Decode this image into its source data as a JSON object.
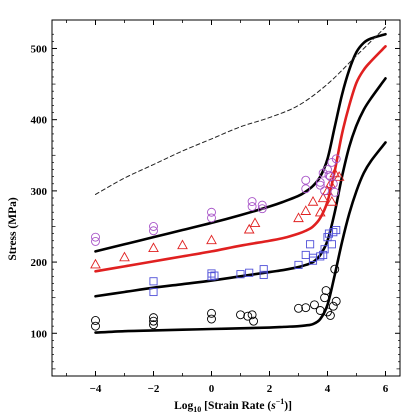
{
  "chart_data": {
    "type": "scatter",
    "title": "",
    "xlabel": "Log",
    "xlabel_sub": "10",
    "xlabel_main": " [Strain Rate (",
    "xlabel_unit_base": "s",
    "xlabel_unit_exp": "−1",
    "xlabel_end": ")]",
    "ylabel": "Stress (MPa)",
    "xlim": [
      -5.5,
      6.5
    ],
    "ylim": [
      40,
      540
    ],
    "xticks": [
      -4,
      -2,
      0,
      2,
      4,
      6
    ],
    "xtick_labels": [
      "−4",
      "−2",
      "0",
      "2",
      "4",
      "6"
    ],
    "yticks": [
      100,
      200,
      300,
      400,
      500
    ],
    "ytick_labels": [
      "100",
      "200",
      "300",
      "400",
      "500"
    ],
    "grid": false,
    "legend": "none",
    "series": [
      {
        "marker": "circle",
        "color": "#000000",
        "points": [
          [
            -4,
            118
          ],
          [
            -4,
            110
          ],
          [
            -2,
            122
          ],
          [
            -2,
            117
          ],
          [
            -2,
            112
          ],
          [
            0,
            128
          ],
          [
            0,
            120
          ],
          [
            1,
            126
          ],
          [
            1.25,
            124
          ],
          [
            1.4,
            126
          ],
          [
            1.45,
            117
          ],
          [
            3.0,
            135
          ],
          [
            3.25,
            136
          ],
          [
            3.55,
            140
          ],
          [
            3.75,
            132
          ],
          [
            3.9,
            150
          ],
          [
            3.95,
            160
          ],
          [
            4.0,
            130
          ],
          [
            4.1,
            125
          ],
          [
            4.2,
            138
          ],
          [
            4.3,
            145
          ],
          [
            4.25,
            190
          ]
        ]
      },
      {
        "marker": "square",
        "color": "#4f4fd8",
        "points": [
          [
            -2,
            173
          ],
          [
            -2,
            158
          ],
          [
            0,
            184
          ],
          [
            0,
            180
          ],
          [
            0.1,
            181
          ],
          [
            1.0,
            183
          ],
          [
            1.3,
            185
          ],
          [
            1.8,
            182
          ],
          [
            1.8,
            190
          ],
          [
            3.0,
            196
          ],
          [
            3.25,
            210
          ],
          [
            3.4,
            225
          ],
          [
            3.5,
            202
          ],
          [
            3.5,
            206
          ],
          [
            3.75,
            208
          ],
          [
            3.85,
            210
          ],
          [
            3.9,
            218
          ],
          [
            4.0,
            235
          ],
          [
            4.05,
            240
          ],
          [
            4.15,
            225
          ],
          [
            4.2,
            242
          ],
          [
            4.3,
            245
          ]
        ]
      },
      {
        "marker": "triangle",
        "color": "#e02020",
        "points": [
          [
            -4,
            197
          ],
          [
            -3,
            207
          ],
          [
            -2,
            220
          ],
          [
            -1,
            224
          ],
          [
            0,
            231
          ],
          [
            1.3,
            246
          ],
          [
            1.5,
            255
          ],
          [
            3.0,
            262
          ],
          [
            3.25,
            272
          ],
          [
            3.5,
            285
          ],
          [
            3.75,
            270
          ],
          [
            3.85,
            290
          ],
          [
            4.0,
            300
          ],
          [
            4.1,
            310
          ],
          [
            4.15,
            285
          ],
          [
            4.25,
            325
          ],
          [
            4.4,
            320
          ]
        ]
      },
      {
        "marker": "circle",
        "color": "#a855c8",
        "points": [
          [
            -4,
            235
          ],
          [
            -4,
            229
          ],
          [
            -2,
            250
          ],
          [
            -2,
            244
          ],
          [
            0,
            270
          ],
          [
            0,
            262
          ],
          [
            1.4,
            285
          ],
          [
            1.4,
            278
          ],
          [
            1.75,
            280
          ],
          [
            1.75,
            275
          ],
          [
            3.25,
            315
          ],
          [
            3.25,
            303
          ],
          [
            3.75,
            312
          ],
          [
            3.75,
            308
          ],
          [
            3.85,
            325
          ],
          [
            3.9,
            300
          ],
          [
            4.0,
            330
          ],
          [
            4.05,
            322
          ],
          [
            4.1,
            320
          ],
          [
            4.15,
            340
          ],
          [
            4.2,
            310
          ],
          [
            4.25,
            298
          ],
          [
            4.3,
            345
          ]
        ]
      }
    ],
    "curves": [
      {
        "style": "solid",
        "color": "#000000",
        "x": [
          -4,
          -3,
          -2,
          -1,
          0,
          1,
          2,
          2.5,
          3,
          3.25,
          3.5,
          3.75,
          4,
          4.25,
          4.5,
          4.75,
          5,
          5.25,
          5.5,
          6
        ],
        "y": [
          101,
          103,
          104,
          105,
          106,
          107,
          108,
          109,
          110,
          111,
          113,
          120,
          140,
          182,
          228,
          268,
          300,
          325,
          342,
          368
        ]
      },
      {
        "style": "solid",
        "color": "#000000",
        "x": [
          -4,
          -3,
          -2,
          -1,
          0,
          1,
          2,
          2.5,
          3,
          3.25,
          3.5,
          3.75,
          4,
          4.25,
          4.5,
          4.75,
          5,
          5.25,
          5.5,
          6
        ],
        "y": [
          152,
          158,
          164,
          169,
          174,
          180,
          186,
          189,
          193,
          196,
          200,
          210,
          230,
          270,
          320,
          362,
          392,
          414,
          430,
          458
        ]
      },
      {
        "style": "solid",
        "color": "#e02020",
        "x": [
          -4,
          -3,
          -2,
          -1,
          0,
          1,
          2,
          2.5,
          3,
          3.25,
          3.5,
          3.75,
          4,
          4.25,
          4.5,
          4.75,
          5,
          5.25,
          5.5,
          6
        ],
        "y": [
          187,
          194,
          201,
          208,
          215,
          223,
          230,
          234,
          240,
          244,
          250,
          262,
          285,
          328,
          380,
          420,
          452,
          470,
          482,
          503
        ]
      },
      {
        "style": "solid",
        "color": "#000000",
        "x": [
          -4,
          -3,
          -2,
          -1,
          0,
          1,
          2,
          2.5,
          3,
          3.25,
          3.5,
          3.75,
          4,
          4.25,
          4.5,
          4.75,
          5,
          5.25,
          5.5,
          6
        ],
        "y": [
          215,
          225,
          235,
          245,
          255,
          266,
          278,
          285,
          293,
          299,
          307,
          320,
          345,
          390,
          435,
          470,
          495,
          508,
          514,
          520
        ]
      },
      {
        "style": "dashed",
        "color": "#222222",
        "x": [
          -4,
          -3,
          -2,
          -1,
          0,
          1,
          2,
          3,
          4,
          5,
          6
        ],
        "y": [
          295,
          318,
          337,
          356,
          373,
          390,
          403,
          420,
          450,
          490,
          530
        ]
      }
    ]
  }
}
